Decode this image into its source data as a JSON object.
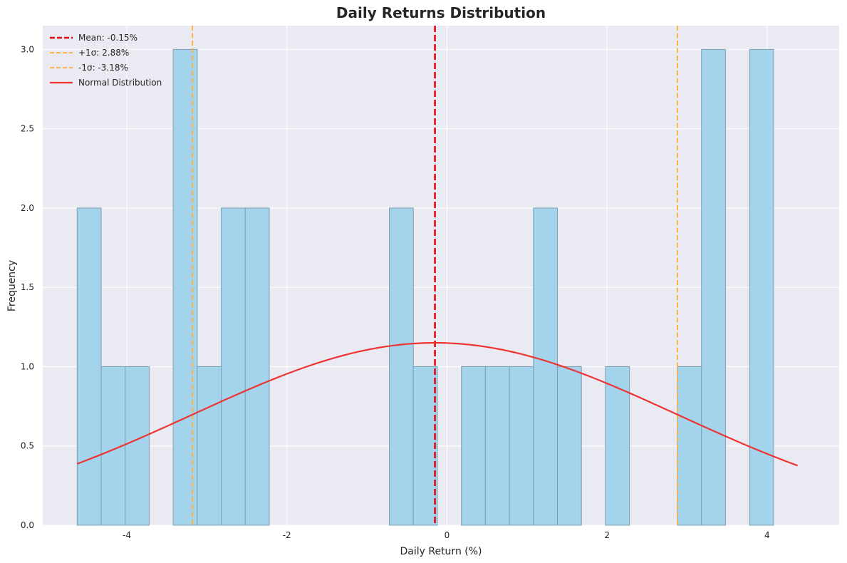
{
  "chart_data": {
    "type": "bar",
    "title": "Daily Returns Distribution",
    "xlabel": "Daily Return (%)",
    "ylabel": "Frequency",
    "xlim": [
      -5.05,
      4.9
    ],
    "ylim": [
      0,
      3.15
    ],
    "xticks": [
      -4,
      -2,
      0,
      2,
      4
    ],
    "xtick_labels": [
      "-4",
      "-2",
      "0",
      "2",
      "4"
    ],
    "yticks": [
      0,
      0.5,
      1.0,
      1.5,
      2.0,
      2.5,
      3.0
    ],
    "ytick_labels": [
      "0.0",
      "0.5",
      "1.0",
      "1.5",
      "2.0",
      "2.5",
      "3.0"
    ],
    "grid": true,
    "legend_position": "top-left",
    "bins": {
      "start": -4.62,
      "width": 0.3,
      "counts": [
        2,
        1,
        1,
        0,
        3,
        1,
        2,
        2,
        0,
        0,
        0,
        0,
        0,
        2,
        1,
        0,
        1,
        1,
        1,
        2,
        1,
        0,
        1,
        0,
        0,
        1,
        3,
        0,
        3
      ]
    },
    "mean": -0.15,
    "std": 3.03,
    "mean_line": {
      "label": "Mean: -0.15%",
      "x": -0.15,
      "color": "#e8000b"
    },
    "plus_sigma_line": {
      "label": "+1σ: 2.88%",
      "x": 2.88,
      "color": "#ffb347"
    },
    "minus_sigma_line": {
      "label": "-1σ: -3.18%",
      "x": -3.18,
      "color": "#ffb347"
    },
    "normal_curve": {
      "label": "Normal Distribution",
      "color": "#ee3333",
      "peak": 1.15,
      "x_range": [
        -4.62,
        4.38
      ]
    },
    "colors": {
      "bar_fill": "#a3d4ec",
      "bar_edge": "#7f9fb0",
      "plot_bg": "#eaeaf2",
      "grid": "#ffffff"
    }
  }
}
